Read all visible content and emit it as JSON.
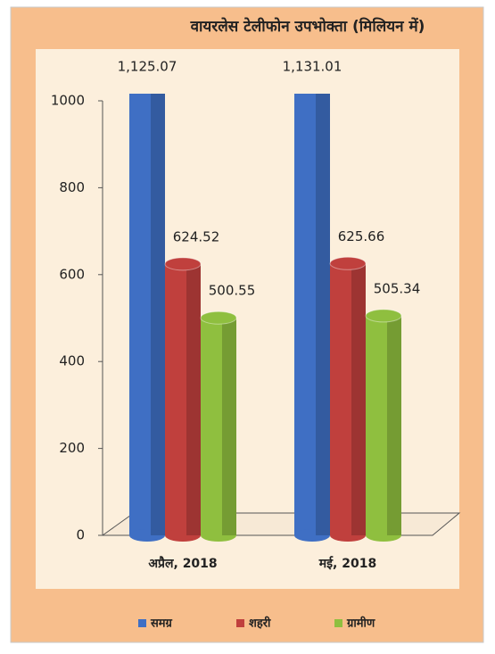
{
  "chart_data": {
    "type": "bar",
    "title": "वायरलेस टेलीफोन उपभोक्ता (मिलियन में)",
    "categories": [
      "अप्रैल, 2018",
      "मई, 2018"
    ],
    "series": [
      {
        "name": "समग्र",
        "color": "#3f6fc4",
        "values": [
          1125.07,
          1131.01
        ],
        "value_labels": [
          "1,125.07",
          "1,131.01"
        ]
      },
      {
        "name": "शहरी",
        "color": "#c0403d",
        "values": [
          624.52,
          625.66
        ]
      },
      {
        "name": "ग्रामीण",
        "color": "#8fbf3f",
        "values": [
          500.55,
          505.34
        ]
      }
    ],
    "ylim": [
      0,
      1000
    ],
    "yticks": [
      0,
      200,
      400,
      600,
      800,
      1000
    ],
    "legend": "bottom"
  }
}
